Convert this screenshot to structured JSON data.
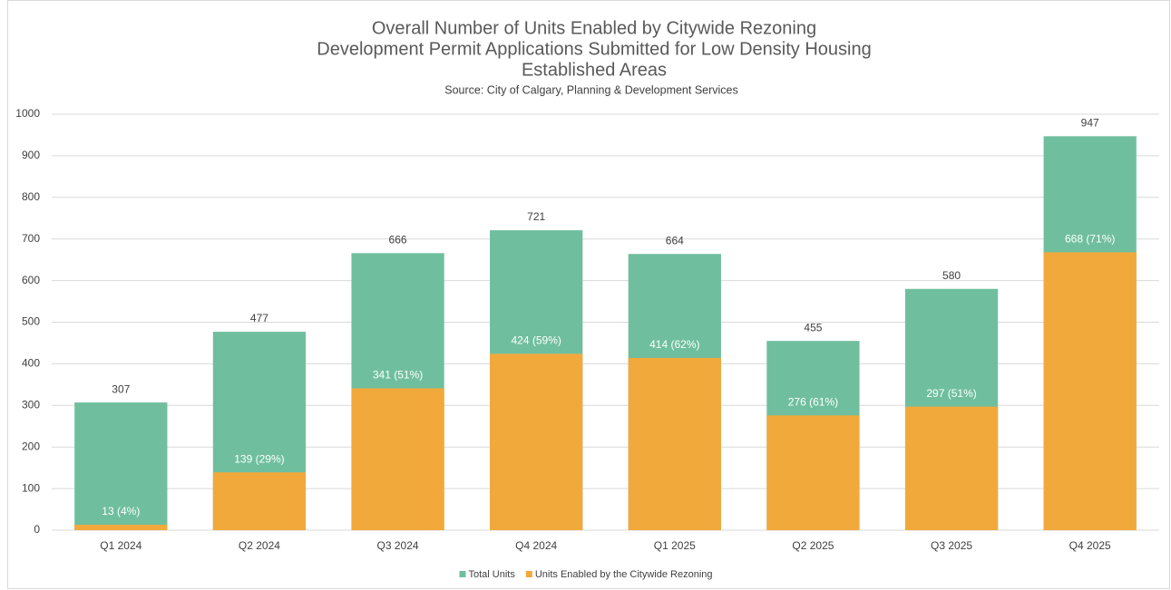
{
  "chart_data": {
    "type": "bar",
    "title": [
      "Overall Number of Units Enabled by Citywide Rezoning",
      "Development Permit Applications Submitted for Low Density Housing",
      "Established Areas"
    ],
    "subtitle": "Source: City of Calgary, Planning & Development Services",
    "categories": [
      "Q1 2024",
      "Q2 2024",
      "Q3 2024",
      "Q4 2024",
      "Q1 2025",
      "Q2 2025",
      "Q3 2025",
      "Q4 2025"
    ],
    "series": [
      {
        "name": "Total Units",
        "color": "#6fbf9e",
        "values": [
          307,
          477,
          666,
          721,
          664,
          455,
          580,
          947
        ]
      },
      {
        "name": "Units Enabled by the Citywide Rezoning",
        "color": "#f2a93b",
        "values": [
          13,
          139,
          341,
          424,
          414,
          276,
          297,
          668
        ],
        "value_labels": [
          "13 (4%)",
          "139 (29%)",
          "341 (51%)",
          "424 (59%)",
          "414 (62%)",
          "276 (61%)",
          "297 (51%)",
          "668 (71%)"
        ]
      }
    ],
    "ylim": [
      0,
      1000
    ],
    "yticks": [
      0,
      100,
      200,
      300,
      400,
      500,
      600,
      700,
      800,
      900,
      1000
    ],
    "grid": true,
    "legend": "bottom"
  }
}
